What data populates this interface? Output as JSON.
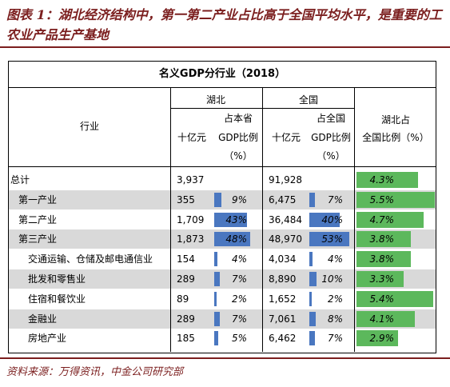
{
  "figure_title": "图表 1：湖北经济结构中，第一第二产业占比高于全国平均水平，是重要的工农业产品生产基地",
  "table_title": "名义GDP分行业（2018）",
  "header": {
    "industry": "行业",
    "hubei": "湖北",
    "national": "全国",
    "unit": "十亿元",
    "hubei_share_line1": "占本省",
    "hubei_share_line2": "GDP比例",
    "hubei_share_line3": "（%）",
    "nat_share_line1": "占全国",
    "nat_share_line2": "GDP比例",
    "nat_share_line3": "（%）",
    "ratio_line1": "湖北占",
    "ratio_line2": "全国比例（%）"
  },
  "rows": [
    {
      "label": "总计",
      "indent": 0,
      "shaded": false,
      "hubei_value": "3,937",
      "hubei_share": "",
      "hubei_share_num": 0,
      "national_value": "91,928",
      "national_share": "",
      "national_share_num": 0,
      "ratio": "4.3%",
      "ratio_num": 4.3
    },
    {
      "label": "第一产业",
      "indent": 1,
      "shaded": true,
      "hubei_value": "355",
      "hubei_share": "9%",
      "hubei_share_num": 9,
      "national_value": "6,475",
      "national_share": "7%",
      "national_share_num": 7,
      "ratio": "5.5%",
      "ratio_num": 5.5
    },
    {
      "label": "第二产业",
      "indent": 1,
      "shaded": false,
      "hubei_value": "1,709",
      "hubei_share": "43%",
      "hubei_share_num": 43,
      "national_value": "36,484",
      "national_share": "40%",
      "national_share_num": 40,
      "ratio": "4.7%",
      "ratio_num": 4.7
    },
    {
      "label": "第三产业",
      "indent": 1,
      "shaded": true,
      "hubei_value": "1,873",
      "hubei_share": "48%",
      "hubei_share_num": 48,
      "national_value": "48,970",
      "national_share": "53%",
      "national_share_num": 53,
      "ratio": "3.8%",
      "ratio_num": 3.8
    },
    {
      "label": "交通运输、仓储及邮电通信业",
      "indent": 2,
      "shaded": false,
      "hubei_value": "154",
      "hubei_share": "4%",
      "hubei_share_num": 4,
      "national_value": "4,034",
      "national_share": "4%",
      "national_share_num": 4,
      "ratio": "3.8%",
      "ratio_num": 3.8
    },
    {
      "label": "批发和零售业",
      "indent": 2,
      "shaded": true,
      "hubei_value": "289",
      "hubei_share": "7%",
      "hubei_share_num": 7,
      "national_value": "8,890",
      "national_share": "10%",
      "national_share_num": 10,
      "ratio": "3.3%",
      "ratio_num": 3.3
    },
    {
      "label": "住宿和餐饮业",
      "indent": 2,
      "shaded": false,
      "hubei_value": "89",
      "hubei_share": "2%",
      "hubei_share_num": 2,
      "national_value": "1,652",
      "national_share": "2%",
      "national_share_num": 2,
      "ratio": "5.4%",
      "ratio_num": 5.4
    },
    {
      "label": "金融业",
      "indent": 2,
      "shaded": true,
      "hubei_value": "289",
      "hubei_share": "7%",
      "hubei_share_num": 7,
      "national_value": "7,061",
      "national_share": "8%",
      "national_share_num": 8,
      "ratio": "4.1%",
      "ratio_num": 4.1
    },
    {
      "label": "房地产业",
      "indent": 2,
      "shaded": false,
      "hubei_value": "185",
      "hubei_share": "5%",
      "hubei_share_num": 5,
      "national_value": "6,462",
      "national_share": "7%",
      "national_share_num": 7,
      "ratio": "2.9%",
      "ratio_num": 2.9
    }
  ],
  "source": "资料来源：万得资讯，中金公司研究部",
  "colors": {
    "title": "#7b1e1e",
    "row_shade": "#d9d9d9",
    "share_bar": "#4a77c0",
    "ratio_bar": "#5cb85c"
  }
}
